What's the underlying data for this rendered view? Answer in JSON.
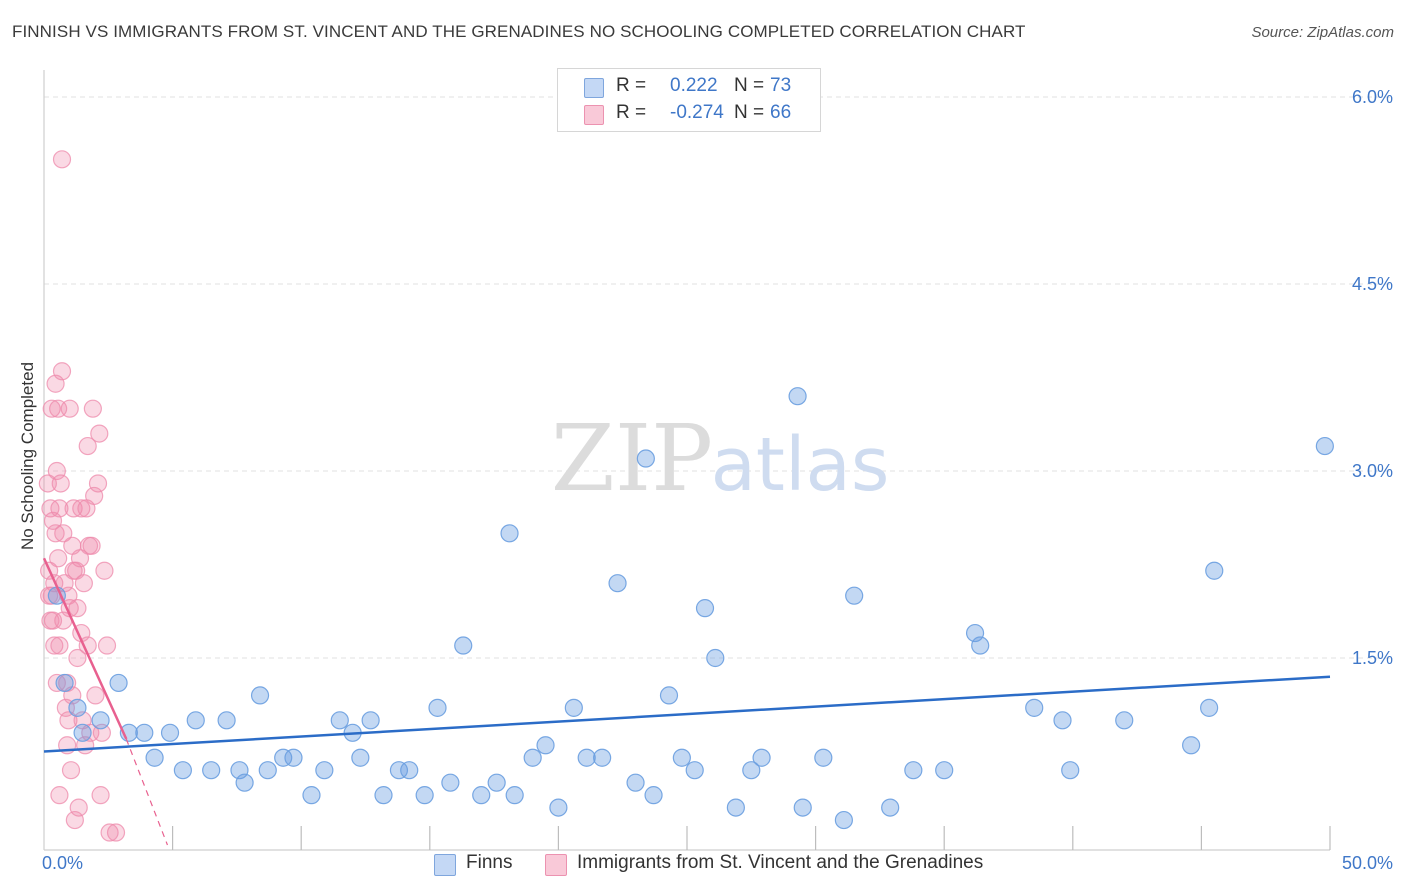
{
  "title": "FINNISH VS IMMIGRANTS FROM ST. VINCENT AND THE GRENADINES NO SCHOOLING COMPLETED CORRELATION CHART",
  "source": "Source: ZipAtlas.com",
  "watermark": {
    "zip": "ZIP",
    "atlas": "atlas"
  },
  "legend": {
    "rows": [
      {
        "r_label": "R =",
        "r_value": "0.222",
        "n_label": "N =",
        "n_value": "73"
      },
      {
        "r_label": "R =",
        "r_value": "-0.274",
        "n_label": "N =",
        "n_value": "66"
      }
    ]
  },
  "chart_data": {
    "type": "scatter",
    "title": "FINNISH VS IMMIGRANTS FROM ST. VINCENT AND THE GRENADINES NO SCHOOLING COMPLETED CORRELATION CHART",
    "xlabel": "",
    "ylabel": "No Schooling Completed",
    "xlim": [
      0,
      50
    ],
    "ylim": [
      0,
      6.4
    ],
    "x_tick_labels": [
      "0.0%",
      "50.0%"
    ],
    "y_ticks": [
      1.5,
      3.0,
      4.5,
      6.0
    ],
    "y_tick_labels": [
      "1.5%",
      "3.0%",
      "4.5%",
      "6.0%"
    ],
    "grid": true,
    "legend_position": "bottom",
    "colors": {
      "finns": "#6a9ee0",
      "svg": "#ee8aab",
      "finns_line": "#2b6cc7",
      "svg_line": "#e8608f",
      "tick_label": "#3f77c8"
    },
    "series": [
      {
        "name": "Finns",
        "points": [
          [
            0.5,
            2.0
          ],
          [
            0.8,
            1.3
          ],
          [
            1.3,
            1.1
          ],
          [
            1.5,
            0.9
          ],
          [
            2.2,
            1.0
          ],
          [
            2.9,
            1.3
          ],
          [
            3.3,
            0.9
          ],
          [
            3.9,
            0.9
          ],
          [
            4.3,
            0.7
          ],
          [
            4.9,
            0.9
          ],
          [
            5.4,
            0.6
          ],
          [
            5.9,
            1.0
          ],
          [
            6.5,
            0.6
          ],
          [
            7.1,
            1.0
          ],
          [
            7.6,
            0.6
          ],
          [
            7.8,
            0.5
          ],
          [
            8.4,
            1.2
          ],
          [
            8.7,
            0.6
          ],
          [
            9.3,
            0.7
          ],
          [
            9.7,
            0.7
          ],
          [
            10.4,
            0.4
          ],
          [
            10.9,
            0.6
          ],
          [
            11.5,
            1.0
          ],
          [
            12.0,
            0.9
          ],
          [
            12.3,
            0.7
          ],
          [
            12.7,
            1.0
          ],
          [
            13.2,
            0.4
          ],
          [
            13.8,
            0.6
          ],
          [
            14.2,
            0.6
          ],
          [
            14.8,
            0.4
          ],
          [
            15.3,
            1.1
          ],
          [
            15.8,
            0.5
          ],
          [
            16.3,
            1.6
          ],
          [
            17.0,
            0.4
          ],
          [
            17.6,
            0.5
          ],
          [
            18.1,
            2.5
          ],
          [
            18.3,
            0.4
          ],
          [
            19.0,
            0.7
          ],
          [
            19.5,
            0.8
          ],
          [
            20.0,
            0.3
          ],
          [
            20.6,
            1.1
          ],
          [
            21.1,
            0.7
          ],
          [
            21.7,
            0.7
          ],
          [
            22.3,
            2.1
          ],
          [
            23.0,
            0.5
          ],
          [
            23.4,
            3.1
          ],
          [
            23.7,
            0.4
          ],
          [
            24.3,
            1.2
          ],
          [
            24.8,
            0.7
          ],
          [
            25.3,
            0.6
          ],
          [
            25.7,
            1.9
          ],
          [
            26.1,
            1.5
          ],
          [
            26.9,
            0.3
          ],
          [
            27.5,
            0.6
          ],
          [
            27.9,
            0.7
          ],
          [
            29.3,
            3.6
          ],
          [
            29.5,
            0.3
          ],
          [
            30.3,
            0.7
          ],
          [
            31.1,
            0.2
          ],
          [
            31.5,
            2.0
          ],
          [
            32.9,
            0.3
          ],
          [
            33.8,
            0.6
          ],
          [
            35.0,
            0.6
          ],
          [
            36.2,
            1.7
          ],
          [
            36.4,
            1.6
          ],
          [
            38.5,
            1.1
          ],
          [
            39.6,
            1.0
          ],
          [
            39.9,
            0.6
          ],
          [
            42.0,
            1.0
          ],
          [
            44.6,
            0.8
          ],
          [
            45.3,
            1.1
          ],
          [
            45.5,
            2.2
          ],
          [
            49.8,
            3.2
          ]
        ]
      },
      {
        "name": "Immigrants from St. Vincent and the Grenadines",
        "points": [
          [
            0.15,
            2.9
          ],
          [
            0.2,
            2.2
          ],
          [
            0.25,
            2.7
          ],
          [
            0.3,
            3.5
          ],
          [
            0.3,
            2.0
          ],
          [
            0.35,
            1.8
          ],
          [
            0.4,
            1.6
          ],
          [
            0.4,
            2.1
          ],
          [
            0.45,
            3.7
          ],
          [
            0.45,
            2.5
          ],
          [
            0.5,
            3.0
          ],
          [
            0.5,
            1.3
          ],
          [
            0.55,
            2.3
          ],
          [
            0.6,
            1.6
          ],
          [
            0.6,
            0.4
          ],
          [
            0.65,
            2.9
          ],
          [
            0.7,
            3.8
          ],
          [
            0.7,
            5.5
          ],
          [
            0.75,
            1.8
          ],
          [
            0.8,
            2.1
          ],
          [
            0.85,
            1.1
          ],
          [
            0.9,
            1.3
          ],
          [
            0.9,
            0.8
          ],
          [
            0.95,
            2.0
          ],
          [
            1.0,
            3.5
          ],
          [
            1.0,
            1.9
          ],
          [
            1.05,
            0.6
          ],
          [
            1.1,
            2.4
          ],
          [
            1.1,
            1.2
          ],
          [
            1.15,
            2.7
          ],
          [
            1.2,
            0.2
          ],
          [
            1.25,
            2.2
          ],
          [
            1.3,
            1.9
          ],
          [
            1.3,
            1.5
          ],
          [
            1.35,
            0.3
          ],
          [
            1.4,
            2.3
          ],
          [
            1.45,
            1.7
          ],
          [
            1.5,
            1.0
          ],
          [
            1.55,
            2.1
          ],
          [
            1.6,
            0.8
          ],
          [
            1.65,
            2.7
          ],
          [
            1.7,
            3.2
          ],
          [
            1.75,
            2.4
          ],
          [
            1.8,
            0.9
          ],
          [
            1.85,
            2.4
          ],
          [
            1.9,
            3.5
          ],
          [
            1.95,
            2.8
          ],
          [
            2.0,
            1.2
          ],
          [
            2.1,
            2.9
          ],
          [
            2.15,
            3.3
          ],
          [
            2.2,
            0.4
          ],
          [
            2.25,
            0.9
          ],
          [
            2.35,
            2.2
          ],
          [
            2.45,
            1.6
          ],
          [
            2.55,
            0.1
          ],
          [
            2.8,
            0.1
          ],
          [
            0.25,
            1.8
          ],
          [
            0.35,
            2.6
          ],
          [
            0.55,
            3.5
          ],
          [
            0.75,
            2.5
          ],
          [
            0.95,
            1.0
          ],
          [
            1.15,
            2.2
          ],
          [
            1.45,
            2.7
          ],
          [
            1.7,
            1.6
          ],
          [
            0.2,
            2.0
          ],
          [
            0.6,
            2.7
          ]
        ]
      }
    ],
    "trendlines": [
      {
        "series": "Finns",
        "x0": 0,
        "y0": 0.75,
        "x1": 50,
        "y1": 1.35
      },
      {
        "series": "Immigrants from St. Vincent and the Grenadines",
        "x0": 0,
        "y0": 2.3,
        "x1": 3.2,
        "y1": 0.85,
        "dashed_to_x": 4.8,
        "dashed_to_y": 0.0
      }
    ]
  }
}
